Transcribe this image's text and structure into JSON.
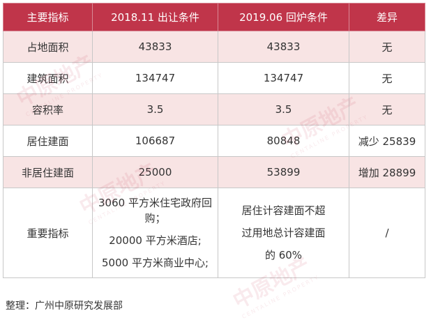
{
  "table": {
    "headers": [
      "主要指标",
      "2018.11 出让条件",
      "2019.06 回炉条件",
      "差异"
    ],
    "rows": [
      {
        "indicator": "占地面积",
        "condition_2018": "43833",
        "condition_2019": "43833",
        "difference": "无"
      },
      {
        "indicator": "建筑面积",
        "condition_2018": "134747",
        "condition_2019": "134747",
        "difference": "无"
      },
      {
        "indicator": "容积率",
        "condition_2018": "3.5",
        "condition_2019": "3.5",
        "difference": "无"
      },
      {
        "indicator": "居住建面",
        "condition_2018": "106687",
        "condition_2019": "80848",
        "difference": "减少 25839"
      },
      {
        "indicator": "非居住建面",
        "condition_2018": "25000",
        "condition_2019": "53899",
        "difference": "增加 28899"
      }
    ],
    "last_row": {
      "indicator": "重要指标",
      "condition_2018_lines": [
        "3060 平方米住宅政府回购；",
        "20000 平方米酒店;",
        "5000 平方米商业中心;"
      ],
      "condition_2019_lines": [
        "居住计容建面不超",
        "过用地总计容建面",
        "的 60%"
      ],
      "difference": "/"
    }
  },
  "source": "整理：广州中原研究发展部",
  "watermark": {
    "text": "中原地产",
    "subtext": "CENTALINE PROPERTY"
  },
  "colors": {
    "header_bg": "#c0354a",
    "header_text": "#ffffff",
    "alt_row_bg": "#f8e4e4",
    "border": "#c7c7c7"
  }
}
